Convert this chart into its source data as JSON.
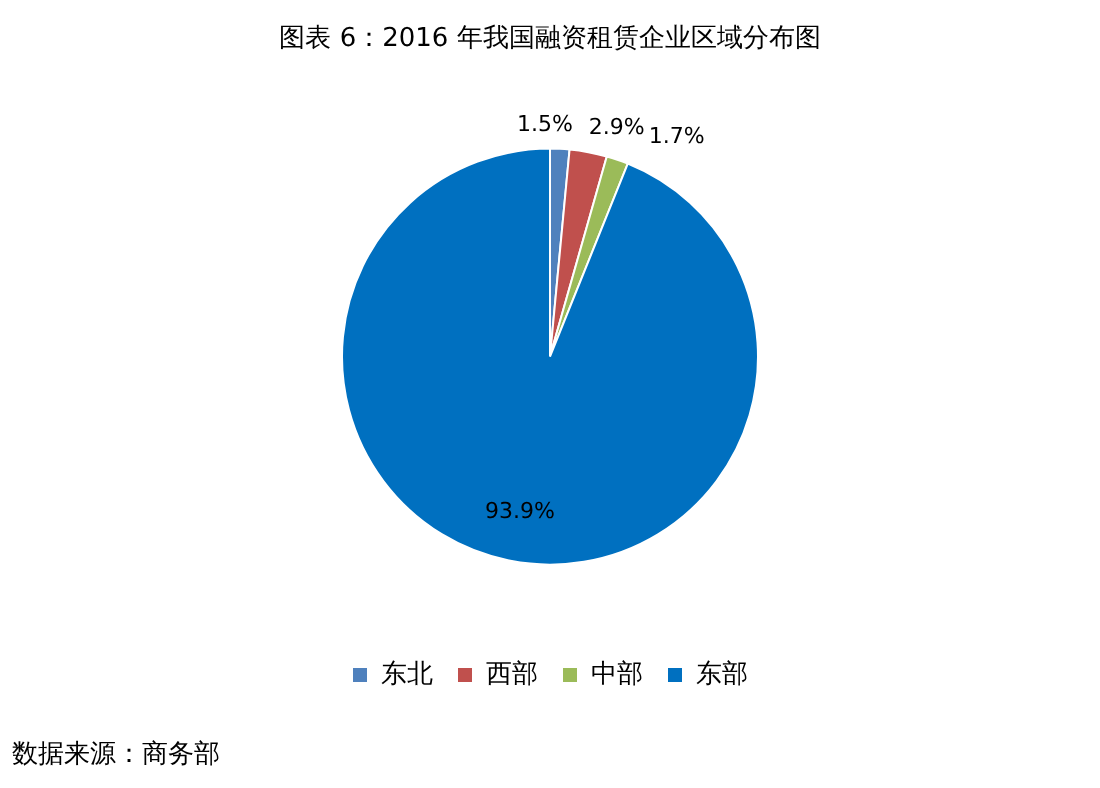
{
  "chart_data": {
    "type": "pie",
    "title": "图表 6：2016 年我国融资租赁企业区域分布图",
    "categories": [
      "东北",
      "西部",
      "中部",
      "东部"
    ],
    "values": [
      1.5,
      2.9,
      1.7,
      93.9
    ],
    "value_labels": [
      "1.5%",
      "2.9%",
      "1.7%",
      "93.9%"
    ],
    "colors": [
      "#4f81bd",
      "#c0504d",
      "#9bbb59",
      "#0070c0"
    ],
    "legend": "bottom",
    "annotations": [
      "数据来源：商务部"
    ]
  }
}
